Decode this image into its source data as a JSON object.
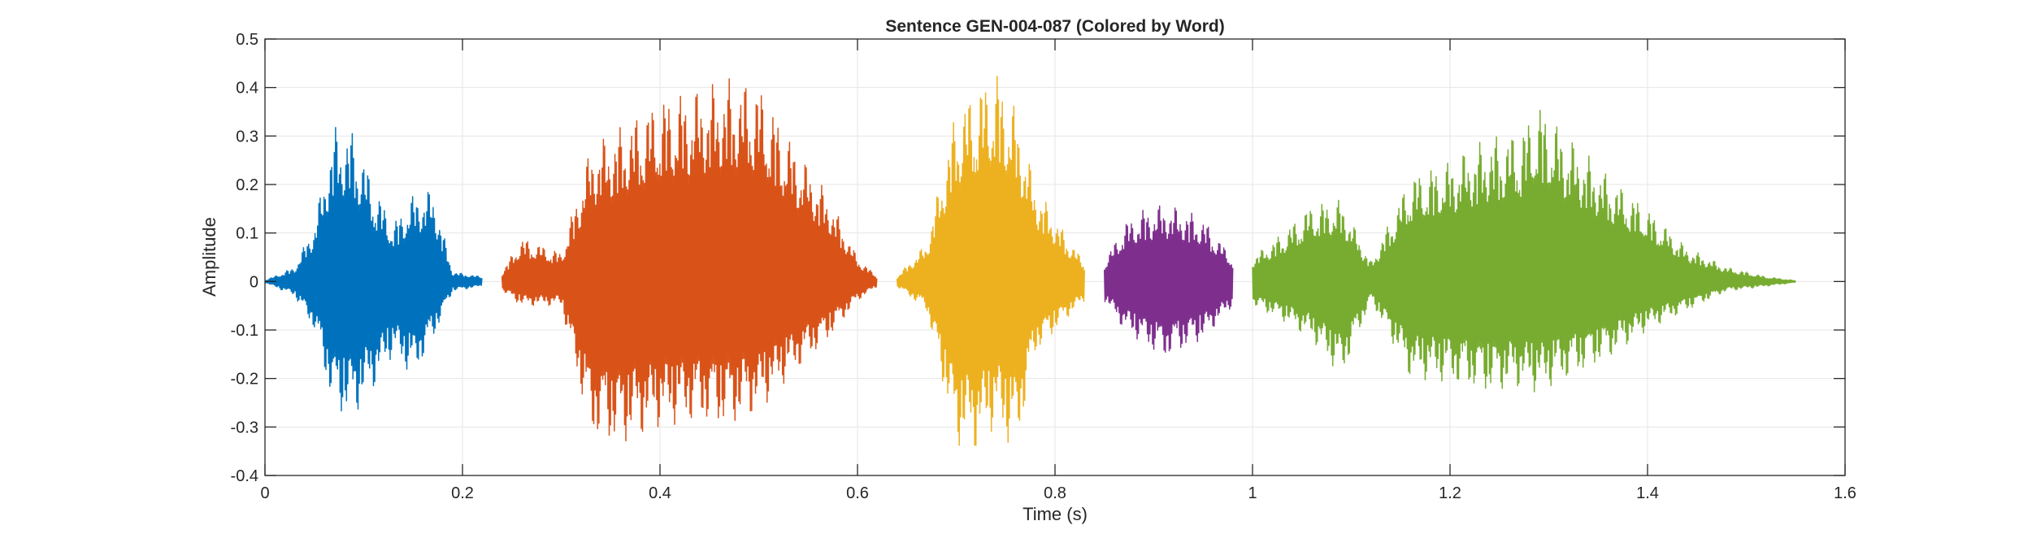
{
  "chart_data": {
    "type": "line",
    "title": "Sentence GEN-004-087 (Colored by Word)",
    "xlabel": "Time (s)",
    "ylabel": "Amplitude",
    "xlim": [
      0,
      1.6
    ],
    "ylim": [
      -0.4,
      0.5
    ],
    "xticks": [
      0,
      0.2,
      0.4,
      0.6,
      0.8,
      1,
      1.2,
      1.4,
      1.6
    ],
    "xtick_labels": [
      "0",
      "0.2",
      "0.4",
      "0.6",
      "0.8",
      "1",
      "1.2",
      "1.4",
      "1.6"
    ],
    "yticks": [
      -0.4,
      -0.3,
      -0.2,
      -0.1,
      0,
      0.1,
      0.2,
      0.3,
      0.4,
      0.5
    ],
    "ytick_labels": [
      "-0.4",
      "-0.3",
      "-0.2",
      "-0.1",
      "0",
      "0.1",
      "0.2",
      "0.3",
      "0.4",
      "0.5"
    ],
    "grid": true,
    "series": [
      {
        "color": "#0072BD",
        "x": [
          0,
          0.03,
          0.05,
          0.07,
          0.09,
          0.11,
          0.13,
          0.15,
          0.17,
          0.19,
          0.22
        ],
        "ymax": [
          0.002,
          0.03,
          0.12,
          0.32,
          0.31,
          0.2,
          0.12,
          0.18,
          0.19,
          0.02,
          0.01
        ],
        "ymin": [
          -0.002,
          -0.03,
          -0.1,
          -0.27,
          -0.28,
          -0.22,
          -0.15,
          -0.2,
          -0.12,
          -0.02,
          -0.01
        ]
      },
      {
        "color": "#D95319",
        "x": [
          0.24,
          0.26,
          0.3,
          0.33,
          0.36,
          0.4,
          0.44,
          0.47,
          0.5,
          0.53,
          0.57,
          0.6,
          0.62
        ],
        "ymax": [
          0.02,
          0.09,
          0.06,
          0.28,
          0.32,
          0.38,
          0.4,
          0.42,
          0.41,
          0.3,
          0.18,
          0.05,
          0.01
        ],
        "ymin": [
          -0.02,
          -0.05,
          -0.05,
          -0.32,
          -0.34,
          -0.3,
          -0.29,
          -0.3,
          -0.27,
          -0.2,
          -0.12,
          -0.04,
          -0.01
        ]
      },
      {
        "color": "#EDB120",
        "x": [
          0.64,
          0.67,
          0.7,
          0.72,
          0.74,
          0.76,
          0.78,
          0.81,
          0.83
        ],
        "ymax": [
          0.01,
          0.08,
          0.36,
          0.4,
          0.44,
          0.36,
          0.2,
          0.1,
          0.04
        ],
        "ymin": [
          -0.01,
          -0.06,
          -0.34,
          -0.35,
          -0.3,
          -0.36,
          -0.15,
          -0.08,
          -0.04
        ]
      },
      {
        "color": "#7E2F8E",
        "x": [
          0.85,
          0.87,
          0.89,
          0.91,
          0.93,
          0.95,
          0.98
        ],
        "ymax": [
          0.04,
          0.12,
          0.15,
          0.16,
          0.15,
          0.13,
          0.05
        ],
        "ymin": [
          -0.04,
          -0.1,
          -0.13,
          -0.16,
          -0.14,
          -0.12,
          -0.05
        ]
      },
      {
        "color": "#77AC30",
        "x": [
          1,
          1.03,
          1.06,
          1.09,
          1.12,
          1.16,
          1.2,
          1.24,
          1.27,
          1.29,
          1.32,
          1.36,
          1.4,
          1.44,
          1.48,
          1.52,
          1.55
        ],
        "ymax": [
          0.05,
          0.1,
          0.16,
          0.17,
          0.04,
          0.22,
          0.25,
          0.3,
          0.31,
          0.37,
          0.3,
          0.22,
          0.15,
          0.07,
          0.03,
          0.01,
          0.002
        ],
        "ymin": [
          -0.05,
          -0.08,
          -0.12,
          -0.2,
          -0.04,
          -0.2,
          -0.21,
          -0.23,
          -0.22,
          -0.23,
          -0.2,
          -0.16,
          -0.1,
          -0.06,
          -0.02,
          -0.01,
          -0.002
        ]
      }
    ]
  }
}
